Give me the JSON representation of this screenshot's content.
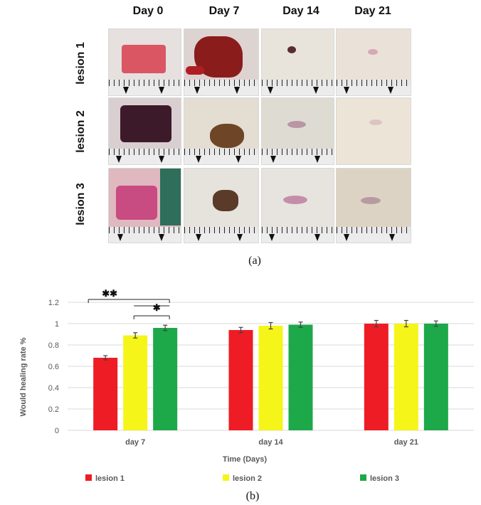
{
  "panel_a": {
    "columns": [
      "Day 0",
      "Day 7",
      "Day 14",
      "Day 21"
    ],
    "rows": [
      "lesion 1",
      "lesion 2",
      "lesion 3"
    ],
    "caption": "(a)"
  },
  "panel_b": {
    "caption": "(b)"
  },
  "chart_data": {
    "type": "bar",
    "categories": [
      "day 7",
      "day 14",
      "day 21"
    ],
    "series": [
      {
        "name": "lesion 1",
        "color": "#ee1c25",
        "values": [
          0.68,
          0.94,
          1.0
        ],
        "errors": [
          0.02,
          0.025,
          0.03
        ]
      },
      {
        "name": "lesion 2",
        "color": "#f5f51a",
        "values": [
          0.89,
          0.98,
          1.0
        ],
        "errors": [
          0.025,
          0.03,
          0.03
        ]
      },
      {
        "name": "lesion 3",
        "color": "#1da84a",
        "values": [
          0.96,
          0.99,
          1.0
        ],
        "errors": [
          0.025,
          0.025,
          0.025
        ]
      }
    ],
    "ylim": [
      0,
      1.2
    ],
    "yticks": [
      "0",
      "0.2",
      "0.4",
      "0.6",
      "0.8",
      "1",
      "1.2"
    ],
    "ytick_values": [
      0,
      0.2,
      0.4,
      0.6,
      0.8,
      1.0,
      1.2
    ],
    "ylabel": "Would healing rate %",
    "xlabel": "Time (Days)",
    "grid": true,
    "legend_position": "bottom",
    "annotations": [
      {
        "label": "✱✱",
        "from": "lesion 1",
        "to": "lesion 3",
        "category": "day 7"
      },
      {
        "label": "✱",
        "from": "lesion 2",
        "to": "lesion 3",
        "category": "day 7"
      }
    ]
  },
  "colors": {
    "lesion1": "#ee1c25",
    "lesion2": "#f5f51a",
    "lesion3": "#1da84a",
    "grid": "#d9d9d9",
    "axis_text": "#595959"
  }
}
